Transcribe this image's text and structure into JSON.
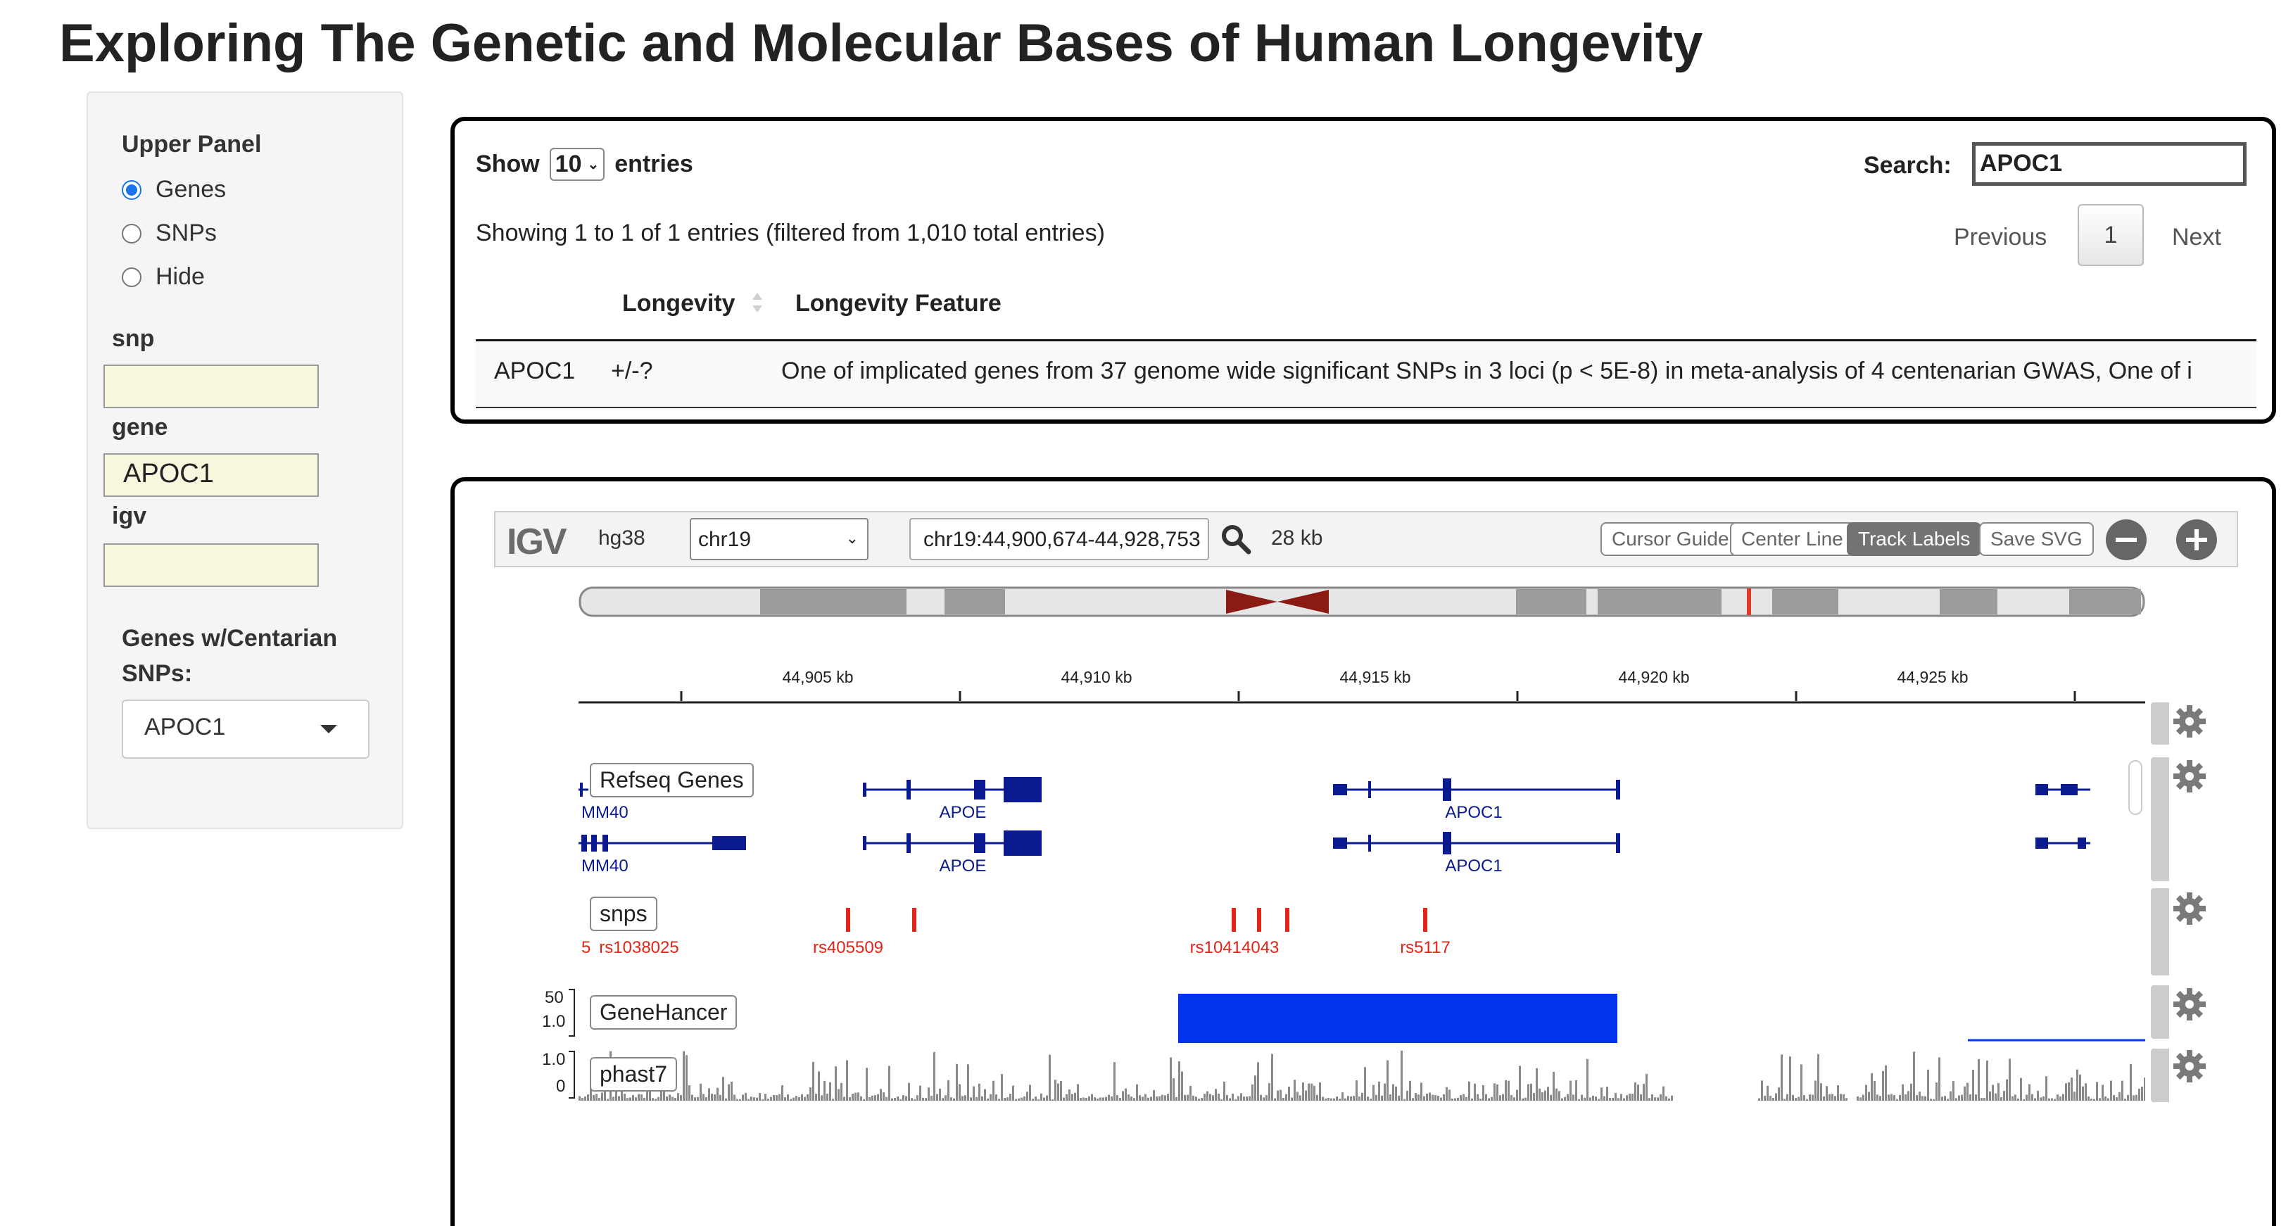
{
  "page": {
    "title": "Exploring The Genetic and Molecular Bases of Human Longevity"
  },
  "sidebar": {
    "upper_panel_label": "Upper Panel",
    "radio_options": [
      {
        "label": "Genes",
        "checked": true
      },
      {
        "label": "SNPs",
        "checked": false
      },
      {
        "label": "Hide",
        "checked": false
      }
    ],
    "snp_label": "snp",
    "snp_value": "",
    "gene_label": "gene",
    "gene_value": "APOC1",
    "igv_label": "igv",
    "igv_value": "",
    "genes_snps_label_line1": "Genes w/Centarian",
    "genes_snps_label_line2": "SNPs:",
    "genes_snps_selected": "APOC1"
  },
  "table": {
    "show_label": "Show",
    "entries_label": "entries",
    "page_size": "10",
    "search_label": "Search:",
    "search_value": "APOC1",
    "info": "Showing 1 to 1 of 1 entries (filtered from 1,010 total entries)",
    "previous": "Previous",
    "current_page": "1",
    "next": "Next",
    "columns": [
      "",
      "Longevity",
      "Longevity Feature"
    ],
    "rows": [
      {
        "gene": "APOC1",
        "longevity": "+/-?",
        "feature": "One of implicated genes from 37 genome wide significant SNPs in 3 loci (p < 5E-8) in meta-analysis of 4 centenarian GWAS, One of i"
      }
    ]
  },
  "igv": {
    "logo": "IGV",
    "genome": "hg38",
    "chromosome": "chr19",
    "locus": "chr19:44,900,674-44,928,753",
    "width": "28 kb",
    "buttons": {
      "cursor_guide": "Cursor Guide",
      "center_line": "Center Line",
      "track_labels": "Track Labels",
      "save_svg": "Save SVG"
    },
    "ruler_ticks": [
      "44,905 kb",
      "44,910 kb",
      "44,915 kb",
      "44,920 kb",
      "44,925 kb"
    ],
    "tracks": {
      "refseq": {
        "label": "Refseq Genes",
        "genes": [
          "APOE",
          "APOC1"
        ],
        "edge_label": "MM40"
      },
      "snps": {
        "label": "snps",
        "ids": [
          "rs1038025",
          "rs405509",
          "rs10414043",
          "rs5117"
        ],
        "edge_label": "5"
      },
      "genehancer": {
        "label": "GeneHancer",
        "scale_top": "50",
        "scale_bottom": "1.0"
      },
      "phast7": {
        "label": "phast7",
        "scale_top": "1.0",
        "scale_bottom": "0"
      }
    },
    "colors": {
      "gene": "#0b1a8f",
      "snp": "#e02618",
      "genehancer": "#0033ee",
      "phast": "#8a8a8a",
      "centromere": "#8b1a12"
    }
  }
}
